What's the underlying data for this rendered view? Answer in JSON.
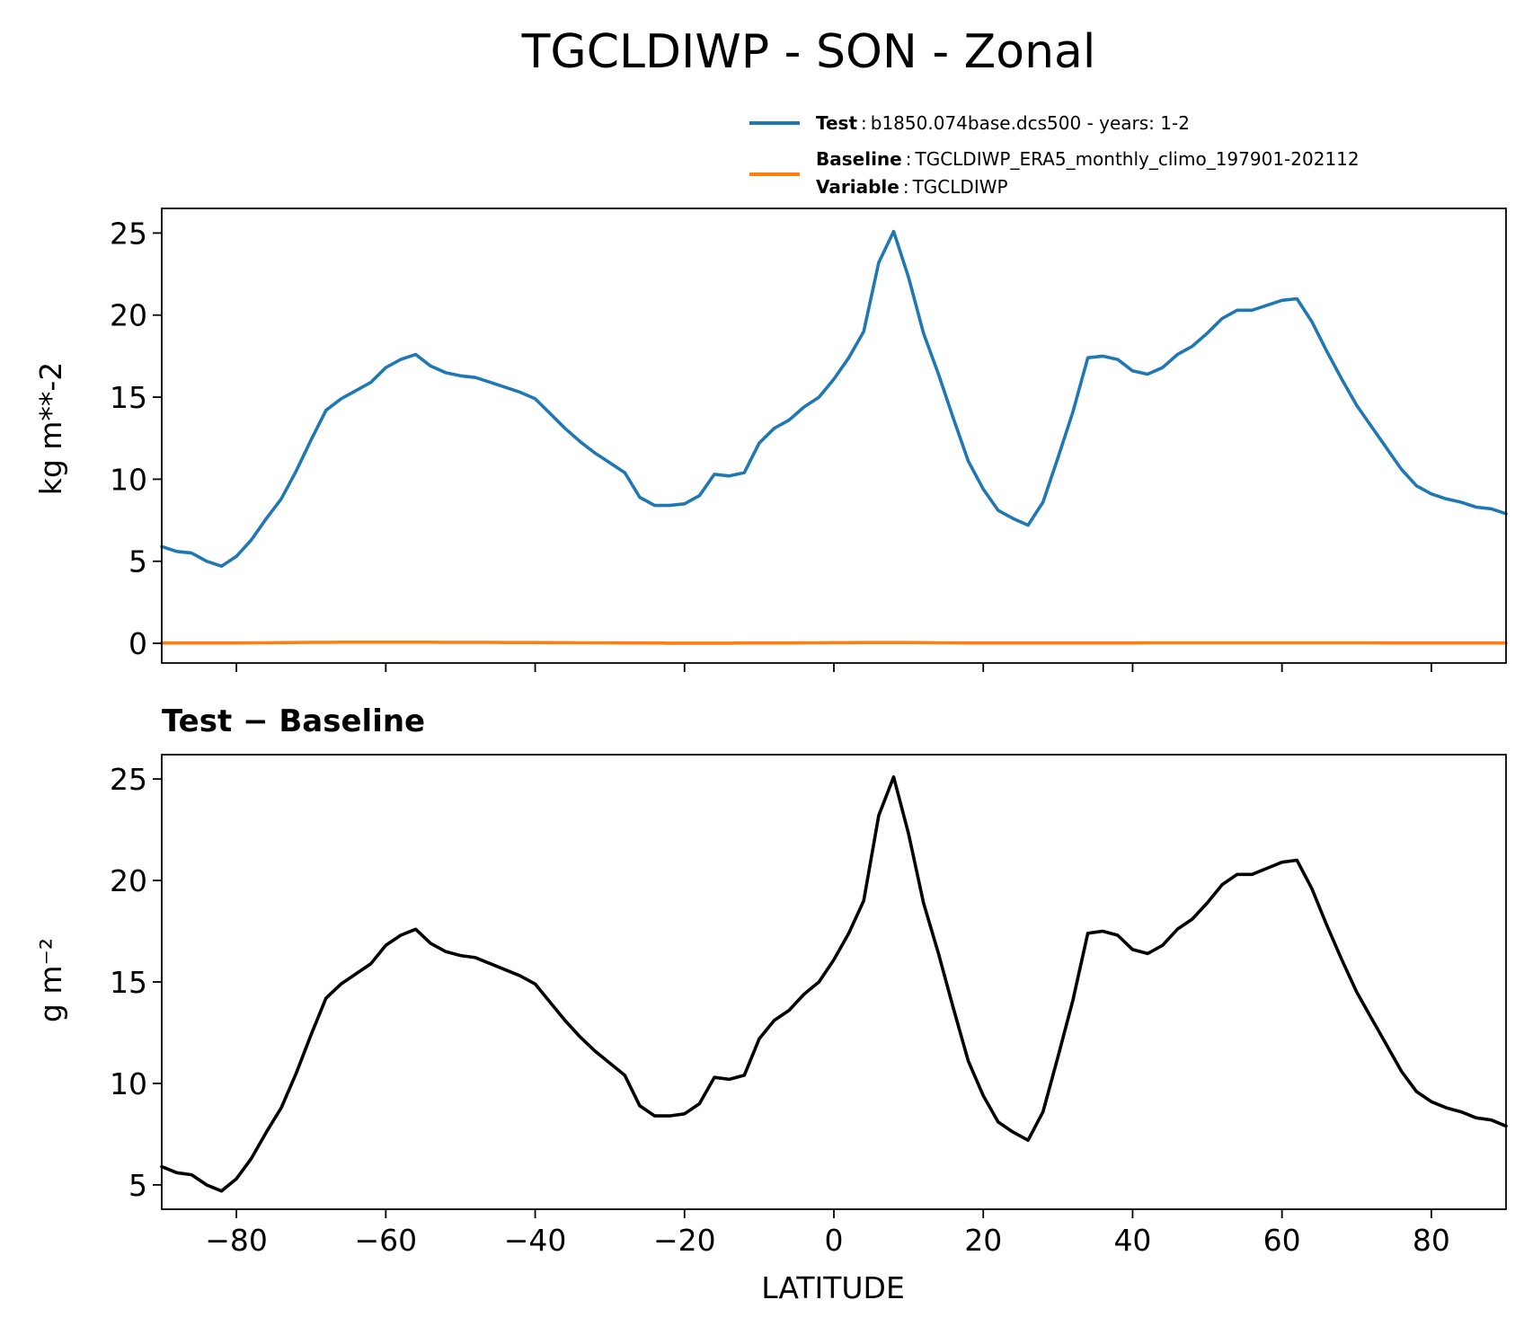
{
  "figure": {
    "title": "TGCLDIWP - SON - Zonal"
  },
  "legend": {
    "test_key": "Test",
    "test_text": "b1850.074base.dcs500 - years: 1-2",
    "baseline_key": "Baseline",
    "baseline_text": "TGCLDIWP_ERA5_monthly_climo_197901-202112",
    "variable_key": "Variable",
    "variable_text": "TGCLDIWP",
    "sep": ":"
  },
  "colors": {
    "test": "#1f77b4",
    "baseline": "#ff7f0e",
    "diff": "#000000"
  },
  "chart_data": [
    {
      "type": "line",
      "ylabel": "kg m**-2",
      "xlim": [
        -90,
        90
      ],
      "ylim": [
        -1.2,
        26.5
      ],
      "yticks": [
        0,
        5,
        10,
        15,
        20,
        25
      ],
      "xticks": [
        -80,
        -60,
        -40,
        -20,
        0,
        20,
        40,
        60,
        80
      ],
      "show_xtick_labels": false,
      "grid": false,
      "legend_position": "above-right",
      "x": [
        -90,
        -88,
        -86,
        -84,
        -82,
        -80,
        -78,
        -76,
        -74,
        -72,
        -70,
        -68,
        -66,
        -64,
        -62,
        -60,
        -58,
        -56,
        -54,
        -52,
        -50,
        -48,
        -46,
        -44,
        -42,
        -40,
        -38,
        -36,
        -34,
        -32,
        -30,
        -28,
        -26,
        -24,
        -22,
        -20,
        -18,
        -16,
        -14,
        -12,
        -10,
        -8,
        -6,
        -4,
        -2,
        0,
        2,
        4,
        6,
        8,
        10,
        12,
        14,
        16,
        18,
        20,
        22,
        24,
        26,
        28,
        30,
        32,
        34,
        36,
        38,
        40,
        42,
        44,
        46,
        48,
        50,
        52,
        54,
        56,
        58,
        60,
        62,
        64,
        66,
        68,
        70,
        72,
        74,
        76,
        78,
        80,
        82,
        84,
        86,
        88,
        90
      ],
      "series": [
        {
          "name": "Test",
          "color": "#1f77b4",
          "values": [
            5.9,
            5.6,
            5.5,
            5.0,
            4.7,
            5.3,
            6.3,
            7.6,
            8.8,
            10.5,
            12.4,
            14.2,
            14.9,
            15.4,
            15.9,
            16.8,
            17.3,
            17.6,
            16.9,
            16.5,
            16.3,
            16.2,
            15.9,
            15.6,
            15.3,
            14.9,
            14.0,
            13.1,
            12.3,
            11.6,
            11.0,
            10.4,
            8.9,
            8.4,
            8.4,
            8.5,
            9.0,
            10.3,
            10.2,
            10.4,
            12.2,
            13.1,
            13.6,
            14.4,
            15.0,
            16.1,
            17.4,
            19.0,
            23.2,
            25.1,
            22.3,
            18.9,
            16.4,
            13.7,
            11.1,
            9.4,
            8.1,
            7.6,
            7.2,
            8.6,
            11.3,
            14.1,
            17.4,
            17.5,
            17.3,
            16.6,
            16.4,
            16.8,
            17.6,
            18.1,
            18.9,
            19.8,
            20.3,
            20.3,
            20.6,
            20.9,
            21.0,
            19.6,
            17.8,
            16.1,
            14.5,
            13.2,
            11.9,
            10.6,
            9.6,
            9.1,
            8.8,
            8.6,
            8.3,
            8.2,
            7.9
          ]
        },
        {
          "name": "Baseline",
          "color": "#ff7f0e",
          "values": [
            0.02,
            0.02,
            0.02,
            0.02,
            0.02,
            0.02,
            0.03,
            0.03,
            0.04,
            0.05,
            0.06,
            0.06,
            0.07,
            0.07,
            0.07,
            0.07,
            0.07,
            0.07,
            0.07,
            0.06,
            0.06,
            0.06,
            0.06,
            0.05,
            0.05,
            0.05,
            0.04,
            0.04,
            0.03,
            0.03,
            0.03,
            0.02,
            0.02,
            0.02,
            0.01,
            0.01,
            0.01,
            0.01,
            0.01,
            0.02,
            0.02,
            0.02,
            0.02,
            0.03,
            0.03,
            0.04,
            0.04,
            0.05,
            0.05,
            0.05,
            0.05,
            0.04,
            0.03,
            0.03,
            0.02,
            0.02,
            0.02,
            0.02,
            0.02,
            0.02,
            0.02,
            0.02,
            0.02,
            0.02,
            0.02,
            0.02,
            0.03,
            0.03,
            0.03,
            0.03,
            0.03,
            0.03,
            0.03,
            0.03,
            0.03,
            0.03,
            0.03,
            0.03,
            0.03,
            0.03,
            0.03,
            0.03,
            0.02,
            0.02,
            0.02,
            0.02,
            0.02,
            0.02,
            0.02,
            0.02,
            0.02
          ]
        }
      ]
    },
    {
      "type": "line",
      "title": "Test − Baseline",
      "ylabel": "g m⁻²",
      "xlabel": "LATITUDE",
      "xlim": [
        -90,
        90
      ],
      "ylim": [
        3.8,
        26.2
      ],
      "yticks": [
        5,
        10,
        15,
        20,
        25
      ],
      "xticks": [
        -80,
        -60,
        -40,
        -20,
        0,
        20,
        40,
        60,
        80
      ],
      "xtick_labels": [
        "−80",
        "−60",
        "−40",
        "−20",
        "0",
        "20",
        "40",
        "60",
        "80"
      ],
      "grid": false,
      "x": [
        -90,
        -88,
        -86,
        -84,
        -82,
        -80,
        -78,
        -76,
        -74,
        -72,
        -70,
        -68,
        -66,
        -64,
        -62,
        -60,
        -58,
        -56,
        -54,
        -52,
        -50,
        -48,
        -46,
        -44,
        -42,
        -40,
        -38,
        -36,
        -34,
        -32,
        -30,
        -28,
        -26,
        -24,
        -22,
        -20,
        -18,
        -16,
        -14,
        -12,
        -10,
        -8,
        -6,
        -4,
        -2,
        0,
        2,
        4,
        6,
        8,
        10,
        12,
        14,
        16,
        18,
        20,
        22,
        24,
        26,
        28,
        30,
        32,
        34,
        36,
        38,
        40,
        42,
        44,
        46,
        48,
        50,
        52,
        54,
        56,
        58,
        60,
        62,
        64,
        66,
        68,
        70,
        72,
        74,
        76,
        78,
        80,
        82,
        84,
        86,
        88,
        90
      ],
      "series": [
        {
          "color": "#000000",
          "values": [
            5.9,
            5.6,
            5.5,
            5.0,
            4.7,
            5.3,
            6.3,
            7.6,
            8.8,
            10.5,
            12.4,
            14.2,
            14.9,
            15.4,
            15.9,
            16.8,
            17.3,
            17.6,
            16.9,
            16.5,
            16.3,
            16.2,
            15.9,
            15.6,
            15.3,
            14.9,
            14.0,
            13.1,
            12.3,
            11.6,
            11.0,
            10.4,
            8.9,
            8.4,
            8.4,
            8.5,
            9.0,
            10.3,
            10.2,
            10.4,
            12.2,
            13.1,
            13.6,
            14.4,
            15.0,
            16.1,
            17.4,
            19.0,
            23.2,
            25.1,
            22.3,
            18.9,
            16.4,
            13.7,
            11.1,
            9.4,
            8.1,
            7.6,
            7.2,
            8.6,
            11.3,
            14.1,
            17.4,
            17.5,
            17.3,
            16.6,
            16.4,
            16.8,
            17.6,
            18.1,
            18.9,
            19.8,
            20.3,
            20.3,
            20.6,
            20.9,
            21.0,
            19.6,
            17.8,
            16.1,
            14.5,
            13.2,
            11.9,
            10.6,
            9.6,
            9.1,
            8.8,
            8.6,
            8.3,
            8.2,
            7.9
          ]
        }
      ]
    }
  ]
}
